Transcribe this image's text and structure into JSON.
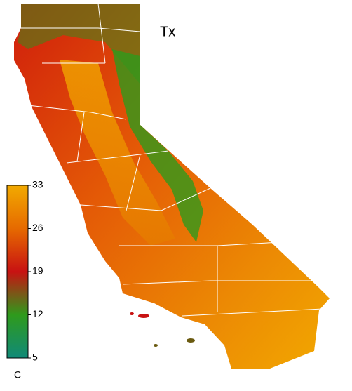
{
  "map": {
    "title": "Tx",
    "colorbar": {
      "lim": [
        5,
        33
      ],
      "ticks": [
        33,
        26,
        19,
        12,
        5
      ],
      "unit": "C",
      "colors": [
        "#108a78",
        "#2f9a1c",
        "#c81212",
        "#e66a00",
        "#f2aa00"
      ]
    }
  }
}
